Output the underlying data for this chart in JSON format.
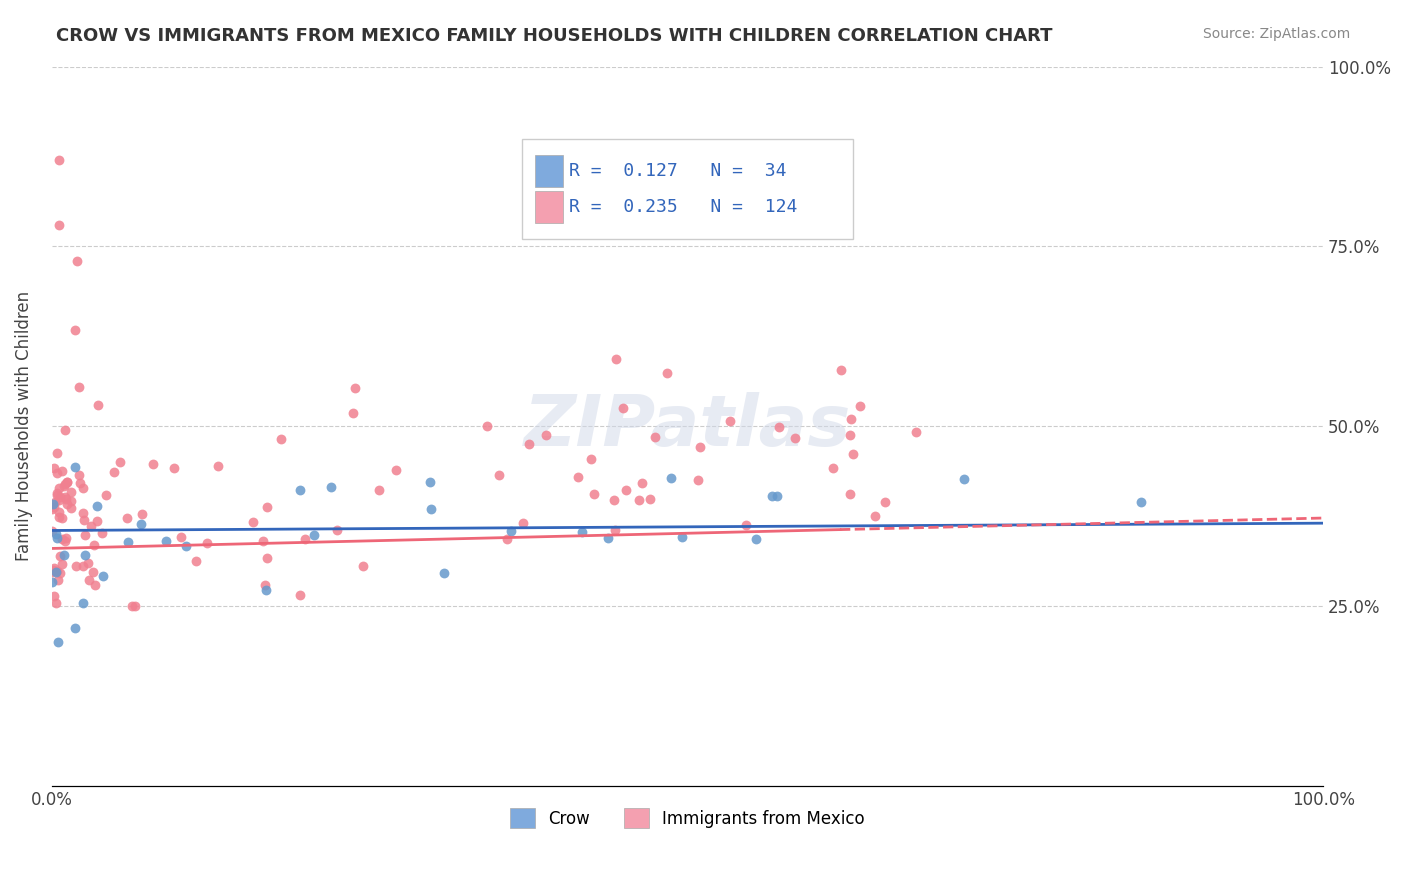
{
  "title": "CROW VS IMMIGRANTS FROM MEXICO FAMILY HOUSEHOLDS WITH CHILDREN CORRELATION CHART",
  "source": "Source: ZipAtlas.com",
  "ylabel": "Family Households with Children",
  "crow_R": "0.127",
  "crow_N": "34",
  "mexico_R": "0.235",
  "mexico_N": "124",
  "crow_color": "#7faadd",
  "mexico_color": "#f4a0b0",
  "crow_scatter_color": "#6699cc",
  "mexico_scatter_color": "#f08090",
  "crow_line_color": "#3366bb",
  "mexico_line_color": "#ee6677",
  "legend_color": "#3366bb",
  "background_color": "#ffffff"
}
